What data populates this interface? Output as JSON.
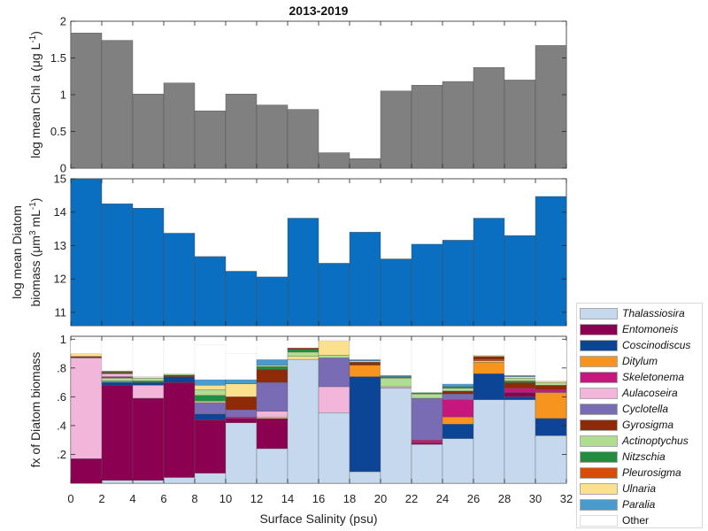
{
  "title": "2013-2019",
  "xlabel": "Surface Salinity (psu)",
  "xticks": [
    "0",
    "2",
    "4",
    "6",
    "8",
    "10",
    "12",
    "14",
    "16",
    "18",
    "20",
    "22",
    "24",
    "26",
    "28",
    "30",
    "32"
  ],
  "panel1": {
    "ylabel_line1": "log mean Chl a (μg L",
    "ylabel_sup": "-1",
    "ylabel_close": ")",
    "yticks": [
      "0",
      "0.5",
      "1",
      "1.5",
      "2"
    ]
  },
  "panel2": {
    "ylabel_line1": "log mean Diatom",
    "ylabel_line2": "biomass (μm",
    "ylabel_sup1": "3",
    "ylabel_mid": " mL",
    "ylabel_sup2": "-1",
    "ylabel_close": ")",
    "yticks": [
      "11",
      "12",
      "13",
      "14",
      "15"
    ]
  },
  "panel3": {
    "ylabel": "fx of Diatom biomass",
    "yticks": [
      ".2",
      ".4",
      ".6",
      ".8",
      "1"
    ]
  },
  "colors": {
    "chl": "#808080",
    "diatom": "#0b6fc1",
    "Thalassiosira": "#c6d8ee",
    "Entomoneis": "#8b0050",
    "Coscinodiscus": "#0d4596",
    "Ditylum": "#f7941d",
    "Skeletonema": "#c7177e",
    "Aulacoseira": "#f2b6da",
    "Cyclotella": "#7a6bb5",
    "Gyrosigma": "#8f2a08",
    "Actinoptychus": "#b1dd91",
    "Nitzschia": "#238d3f",
    "Pleurosigma": "#d84c0a",
    "Ulnaria": "#fbe08d",
    "Paralia": "#4a9acc",
    "Other": "#ffffff"
  },
  "legend": [
    {
      "key": "Thalassiosira",
      "label": "Thalassiosira",
      "italic": true
    },
    {
      "key": "Entomoneis",
      "label": "Entomoneis",
      "italic": true
    },
    {
      "key": "Coscinodiscus",
      "label": "Coscinodiscus",
      "italic": true
    },
    {
      "key": "Ditylum",
      "label": "Ditylum",
      "italic": true
    },
    {
      "key": "Skeletonema",
      "label": "Skeletonema",
      "italic": true
    },
    {
      "key": "Aulacoseira",
      "label": "Aulacoseira",
      "italic": true
    },
    {
      "key": "Cyclotella",
      "label": "Cyclotella",
      "italic": true
    },
    {
      "key": "Gyrosigma",
      "label": "Gyrosigma",
      "italic": true
    },
    {
      "key": "Actinoptychus",
      "label": "Actinoptychus",
      "italic": true
    },
    {
      "key": "Nitzschia",
      "label": "Nitzschia",
      "italic": true
    },
    {
      "key": "Pleurosigma",
      "label": "Pleurosigma",
      "italic": true
    },
    {
      "key": "Ulnaria",
      "label": "Ulnaria",
      "italic": true
    },
    {
      "key": "Paralia",
      "label": "Paralia",
      "italic": true
    },
    {
      "key": "Other",
      "label": "Other",
      "italic": false
    }
  ],
  "chart_data": [
    {
      "type": "bar",
      "title": "2013-2019",
      "ylabel": "log mean Chl a (μg L-1)",
      "ylim": [
        0,
        2
      ],
      "bins": [
        [
          0,
          2
        ],
        [
          2,
          4
        ],
        [
          4,
          6
        ],
        [
          6,
          8
        ],
        [
          8,
          10
        ],
        [
          10,
          12
        ],
        [
          12,
          14
        ],
        [
          14,
          16
        ],
        [
          16,
          18
        ],
        [
          18,
          20
        ],
        [
          20,
          22
        ],
        [
          22,
          24
        ],
        [
          24,
          26
        ],
        [
          26,
          28
        ],
        [
          28,
          30
        ],
        [
          30,
          32
        ]
      ],
      "values": [
        1.84,
        1.74,
        1.01,
        1.16,
        0.78,
        1.01,
        0.86,
        0.8,
        0.21,
        0.13,
        1.05,
        1.13,
        1.18,
        1.37,
        1.2,
        1.67
      ]
    },
    {
      "type": "bar",
      "ylabel": "log mean Diatom biomass (μm3 mL-1)",
      "ylim": [
        10.6,
        15
      ],
      "bins": [
        [
          0,
          2
        ],
        [
          2,
          4
        ],
        [
          4,
          6
        ],
        [
          6,
          8
        ],
        [
          8,
          10
        ],
        [
          10,
          12
        ],
        [
          12,
          14
        ],
        [
          14,
          16
        ],
        [
          16,
          18
        ],
        [
          18,
          20
        ],
        [
          20,
          22
        ],
        [
          22,
          24
        ],
        [
          24,
          26
        ],
        [
          26,
          28
        ],
        [
          28,
          30
        ],
        [
          30,
          32
        ]
      ],
      "values": [
        15.0,
        14.25,
        14.12,
        13.37,
        12.67,
        12.23,
        12.06,
        13.82,
        12.47,
        13.4,
        12.6,
        13.04,
        13.16,
        13.82,
        13.3,
        14.47
      ]
    },
    {
      "type": "bar",
      "stacked": true,
      "xlabel": "Surface Salinity (psu)",
      "ylabel": "fx of Diatom biomass",
      "ylim": [
        0,
        1
      ],
      "xlim": [
        0,
        32
      ],
      "bins": [
        [
          0,
          2
        ],
        [
          2,
          4
        ],
        [
          4,
          6
        ],
        [
          6,
          8
        ],
        [
          8,
          10
        ],
        [
          10,
          12
        ],
        [
          12,
          14
        ],
        [
          14,
          16
        ],
        [
          16,
          18
        ],
        [
          18,
          20
        ],
        [
          20,
          22
        ],
        [
          22,
          24
        ],
        [
          24,
          26
        ],
        [
          26,
          28
        ],
        [
          28,
          30
        ],
        [
          30,
          32
        ]
      ],
      "stacks": [
        [
          [
            "Entomoneis",
            0.17
          ],
          [
            "Aulacoseira",
            0.7
          ],
          [
            "Gyrosigma",
            0.01
          ],
          [
            "Ulnaria",
            0.02
          ],
          [
            "Other",
            0.1
          ]
        ],
        [
          [
            "Thalassiosira",
            0.02
          ],
          [
            "Entomoneis",
            0.66
          ],
          [
            "Coscinodiscus",
            0.02
          ],
          [
            "Paralia",
            0.01
          ],
          [
            "Actinoptychus",
            0.02
          ],
          [
            "Skeletonema",
            0.01
          ],
          [
            "Aulacoseira",
            0.02
          ],
          [
            "Gyrosigma",
            0.01
          ],
          [
            "Nitzschia",
            0.01
          ],
          [
            "Other",
            0.22
          ]
        ],
        [
          [
            "Thalassiosira",
            0.02
          ],
          [
            "Entomoneis",
            0.57
          ],
          [
            "Aulacoseira",
            0.09
          ],
          [
            "Coscinodiscus",
            0.02
          ],
          [
            "Nitzschia",
            0.01
          ],
          [
            "Actinoptychus",
            0.02
          ],
          [
            "Ulnaria",
            0.01
          ],
          [
            "Other",
            0.26
          ]
        ],
        [
          [
            "Thalassiosira",
            0.04
          ],
          [
            "Entomoneis",
            0.66
          ],
          [
            "Coscinodiscus",
            0.04
          ],
          [
            "Gyrosigma",
            0.01
          ],
          [
            "Actinoptychus",
            0.01
          ],
          [
            "Other",
            0.24
          ]
        ],
        [
          [
            "Thalassiosira",
            0.07
          ],
          [
            "Entomoneis",
            0.37
          ],
          [
            "Coscinodiscus",
            0.04
          ],
          [
            "Cyclotella",
            0.08
          ],
          [
            "Ulnaria",
            0.01
          ],
          [
            "Nitzschia",
            0.04
          ],
          [
            "Actinoptychus",
            0.04
          ],
          [
            "Ulnaria",
            0.03
          ],
          [
            "Paralia",
            0.04
          ],
          [
            "Other",
            0.24
          ]
        ],
        [
          [
            "Thalassiosira",
            0.42
          ],
          [
            "Entomoneis",
            0.03
          ],
          [
            "Skeletonema",
            0.01
          ],
          [
            "Cyclotella",
            0.05
          ],
          [
            "Gyrosigma",
            0.09
          ],
          [
            "Ulnaria",
            0.09
          ],
          [
            "Paralia",
            0.03
          ],
          [
            "Other",
            0.18
          ]
        ],
        [
          [
            "Thalassiosira",
            0.24
          ],
          [
            "Entomoneis",
            0.21
          ],
          [
            "Ulnaria",
            0.01
          ],
          [
            "Aulacoseira",
            0.04
          ],
          [
            "Cyclotella",
            0.2
          ],
          [
            "Gyrosigma",
            0.09
          ],
          [
            "Nitzschia",
            0.02
          ],
          [
            "Actinoptychus",
            0.01
          ],
          [
            "Paralia",
            0.04
          ],
          [
            "Other",
            0.14
          ]
        ],
        [
          [
            "Thalassiosira",
            0.86
          ],
          [
            "Ulnaria",
            0.02
          ],
          [
            "Actinoptychus",
            0.03
          ],
          [
            "Nitzschia",
            0.02
          ],
          [
            "Gyrosigma",
            0.01
          ],
          [
            "Other",
            0.06
          ]
        ],
        [
          [
            "Thalassiosira",
            0.49
          ],
          [
            "Aulacoseira",
            0.18
          ],
          [
            "Cyclotella",
            0.2
          ],
          [
            "Actinoptychus",
            0.02
          ],
          [
            "Ulnaria",
            0.1
          ],
          [
            "Other",
            0.01
          ]
        ],
        [
          [
            "Thalassiosira",
            0.08
          ],
          [
            "Coscinodiscus",
            0.66
          ],
          [
            "Ditylum",
            0.08
          ],
          [
            "Gyrosigma",
            0.02
          ],
          [
            "Actinoptychus",
            0.01
          ],
          [
            "Paralia",
            0.01
          ],
          [
            "Other",
            0.14
          ]
        ],
        [
          [
            "Thalassiosira",
            0.66
          ],
          [
            "Aulacoseira",
            0.01
          ],
          [
            "Actinoptychus",
            0.06
          ],
          [
            "Nitzschia",
            0.01
          ],
          [
            "Paralia",
            0.01
          ],
          [
            "Other",
            0.25
          ]
        ],
        [
          [
            "Thalassiosira",
            0.27
          ],
          [
            "Entomoneis",
            0.01
          ],
          [
            "Skeletonema",
            0.02
          ],
          [
            "Cyclotella",
            0.29
          ],
          [
            "Actinoptychus",
            0.03
          ],
          [
            "Nitzschia",
            0.01
          ],
          [
            "Other",
            0.37
          ]
        ],
        [
          [
            "Thalassiosira",
            0.31
          ],
          [
            "Coscinodiscus",
            0.1
          ],
          [
            "Ditylum",
            0.05
          ],
          [
            "Skeletonema",
            0.12
          ],
          [
            "Cyclotella",
            0.04
          ],
          [
            "Gyrosigma",
            0.02
          ],
          [
            "Actinoptychus",
            0.02
          ],
          [
            "Nitzschia",
            0.01
          ],
          [
            "Paralia",
            0.02
          ],
          [
            "Other",
            0.31
          ]
        ],
        [
          [
            "Thalassiosira",
            0.58
          ],
          [
            "Coscinodiscus",
            0.18
          ],
          [
            "Ditylum",
            0.08
          ],
          [
            "Actinoptychus",
            0.01
          ],
          [
            "Pleurosigma",
            0.01
          ],
          [
            "Gyrosigma",
            0.02
          ],
          [
            "Ulnaria",
            0.01
          ],
          [
            "Other",
            0.11
          ]
        ],
        [
          [
            "Thalassiosira",
            0.58
          ],
          [
            "Coscinodiscus",
            0.02
          ],
          [
            "Entomoneis",
            0.03
          ],
          [
            "Skeletonema",
            0.03
          ],
          [
            "Gyrosigma",
            0.04
          ],
          [
            "Nitzschia",
            0.01
          ],
          [
            "Actinoptychus",
            0.02
          ],
          [
            "Ulnaria",
            0.01
          ],
          [
            "Paralia",
            0.01
          ],
          [
            "Other",
            0.25
          ]
        ],
        [
          [
            "Thalassiosira",
            0.33
          ],
          [
            "Coscinodiscus",
            0.12
          ],
          [
            "Ditylum",
            0.18
          ],
          [
            "Skeletonema",
            0.02
          ],
          [
            "Gyrosigma",
            0.03
          ],
          [
            "Actinoptychus",
            0.02
          ],
          [
            "Ulnaria",
            0.01
          ],
          [
            "Other",
            0.29
          ]
        ]
      ]
    }
  ]
}
